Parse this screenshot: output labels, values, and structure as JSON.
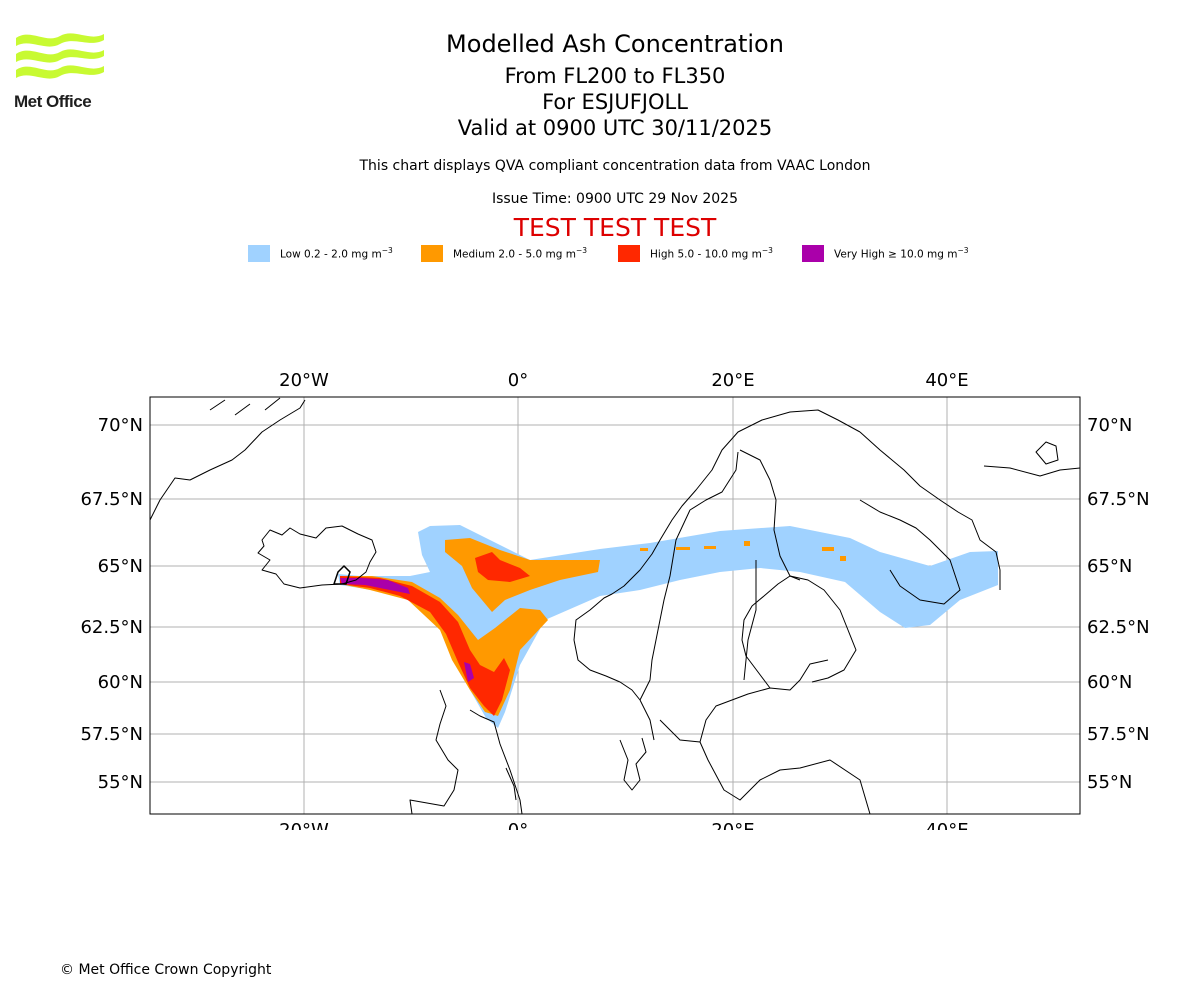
{
  "logo": {
    "text": "Met Office",
    "accent": "#c8fa32",
    "icon": "met-office-waves-icon"
  },
  "header": {
    "title": "Modelled Ash Concentration",
    "flight_levels": "From FL200 to FL350",
    "volcano": "For ESJUFJOLL",
    "valid": "Valid at 0900 UTC 30/11/2025",
    "disclaimer": "This chart displays QVA compliant concentration data from VAAC London",
    "issue_time": "Issue Time: 0900 UTC 29 Nov 2025",
    "test_banner": "TEST TEST TEST"
  },
  "legend": [
    {
      "label": "Low 0.2 - 2.0 mg m",
      "color": "#a0d2ff"
    },
    {
      "label": "Medium 2.0 - 5.0 mg m",
      "color": "#ff9900"
    },
    {
      "label": "High 5.0 - 10.0 mg m",
      "color": "#ff2800"
    },
    {
      "label": "Very High ≥ 10.0 mg m",
      "color": "#aa00aa"
    }
  ],
  "legend_unit_exponent": "−3",
  "map": {
    "lon_ticks": [
      "20°W",
      "0°",
      "20°E",
      "40°E"
    ],
    "lat_ticks": [
      "70°N",
      "67.5°N",
      "65°N",
      "62.5°N",
      "60°N",
      "57.5°N",
      "55°N"
    ],
    "lon_range": [
      -34.5,
      52
    ],
    "lat_range": [
      54,
      71
    ]
  },
  "footer": {
    "copyright": "© Met Office Crown Copyright"
  }
}
